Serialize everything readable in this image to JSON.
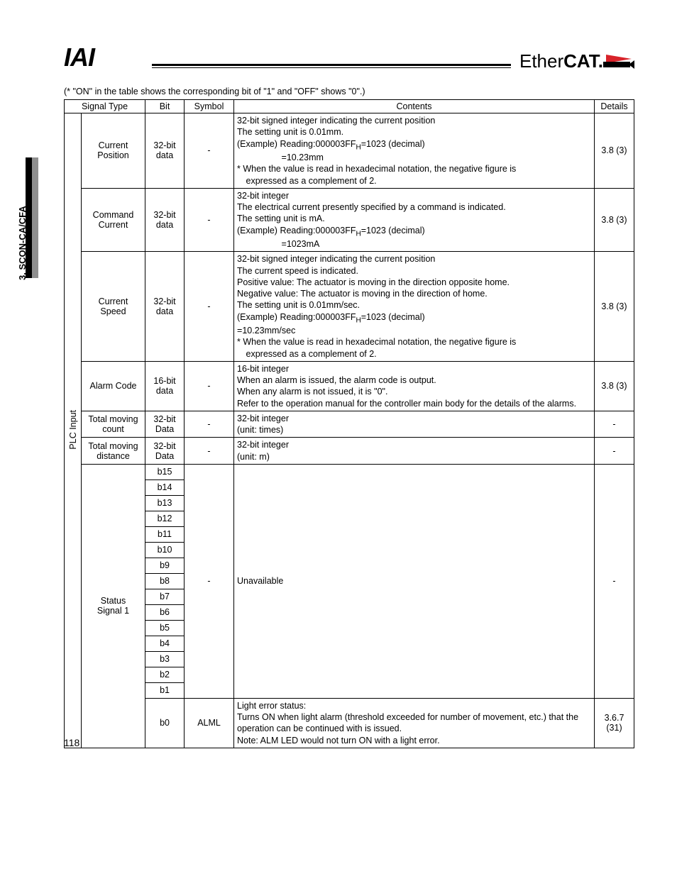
{
  "side_label": "3. SCON-CA/CFA",
  "logo_left": "IAI",
  "logo_right_prefix": "Ether",
  "logo_right_bold": "CAT.",
  "note_text": "(* \"ON\" in the table shows the corresponding bit of \"1\" and \"OFF\" shows \"0\".)",
  "headers": {
    "signal_type": "Signal Type",
    "bit": "Bit",
    "symbol": "Symbol",
    "contents": "Contents",
    "details": "Details"
  },
  "plc_input_label": "PLC Input",
  "rows": [
    {
      "signal": "Current\nPosition",
      "bit": "32-bit\ndata",
      "symbol": "-",
      "contents": "32-bit signed integer indicating the current position\nThe setting unit is 0.01mm.\n(Example) Reading:000003FFₕ=1023 (decimal)\n     =10.23mm\n* When the value is read in hexadecimal notation, the negative figure is\n expressed as a complement of 2.",
      "details": "3.8 (3)"
    },
    {
      "signal": "Command\nCurrent",
      "bit": "32-bit\ndata",
      "symbol": "-",
      "contents": "32-bit integer\nThe electrical current presently specified by a command is indicated.\nThe setting unit is mA.\n(Example) Reading:000003FFₕ=1023 (decimal)\n     =1023mA",
      "details": "3.8 (3)"
    },
    {
      "signal": "Current\nSpeed",
      "bit": "32-bit\ndata",
      "symbol": "-",
      "contents": "32-bit signed integer indicating the current position\nThe current speed is indicated.\nPositive value: The actuator is moving in the direction opposite home.\nNegative value: The actuator is moving in the direction of home.\nThe setting unit is 0.01mm/sec.\n(Example) Reading:000003FFₕ=1023 (decimal)\n=10.23mm/sec\n* When the value is read in hexadecimal notation, the negative figure is\n expressed as a complement of 2.",
      "details": "3.8 (3)"
    },
    {
      "signal": "Alarm Code",
      "bit": "16-bit\ndata",
      "symbol": "-",
      "contents": "16-bit integer\nWhen an alarm is issued, the alarm code is output.\nWhen any alarm is not issued, it is \"0\".\nRefer to the operation manual for the controller main body for the details of the alarms.",
      "details": "3.8 (3)"
    },
    {
      "signal": "Total moving\ncount",
      "bit": "32-bit\nData",
      "symbol": "-",
      "contents": "32-bit integer\n(unit: times)",
      "details": "-"
    },
    {
      "signal": "Total moving\ndistance",
      "bit": "32-bit\nData",
      "symbol": "-",
      "contents": "32-bit integer\n(unit: m)",
      "details": "-"
    }
  ],
  "status_signal_label": "Status\nSignal 1",
  "status_bits": [
    "b15",
    "b14",
    "b13",
    "b12",
    "b11",
    "b10",
    "b9",
    "b8",
    "b7",
    "b6",
    "b5",
    "b4",
    "b3",
    "b2",
    "b1"
  ],
  "status_unavailable_symbol": "-",
  "status_unavailable_contents": "Unavailable",
  "status_unavailable_details": "-",
  "status_b0": {
    "bit": "b0",
    "symbol": "ALML",
    "contents": "Light error status:\nTurns ON when light alarm (threshold exceeded for number of movement, etc.) that the operation can be continued with is issued.\nNote: ALM LED would not turn ON with a light error.",
    "details": "3.6.7 (31)"
  },
  "page_number": "118"
}
